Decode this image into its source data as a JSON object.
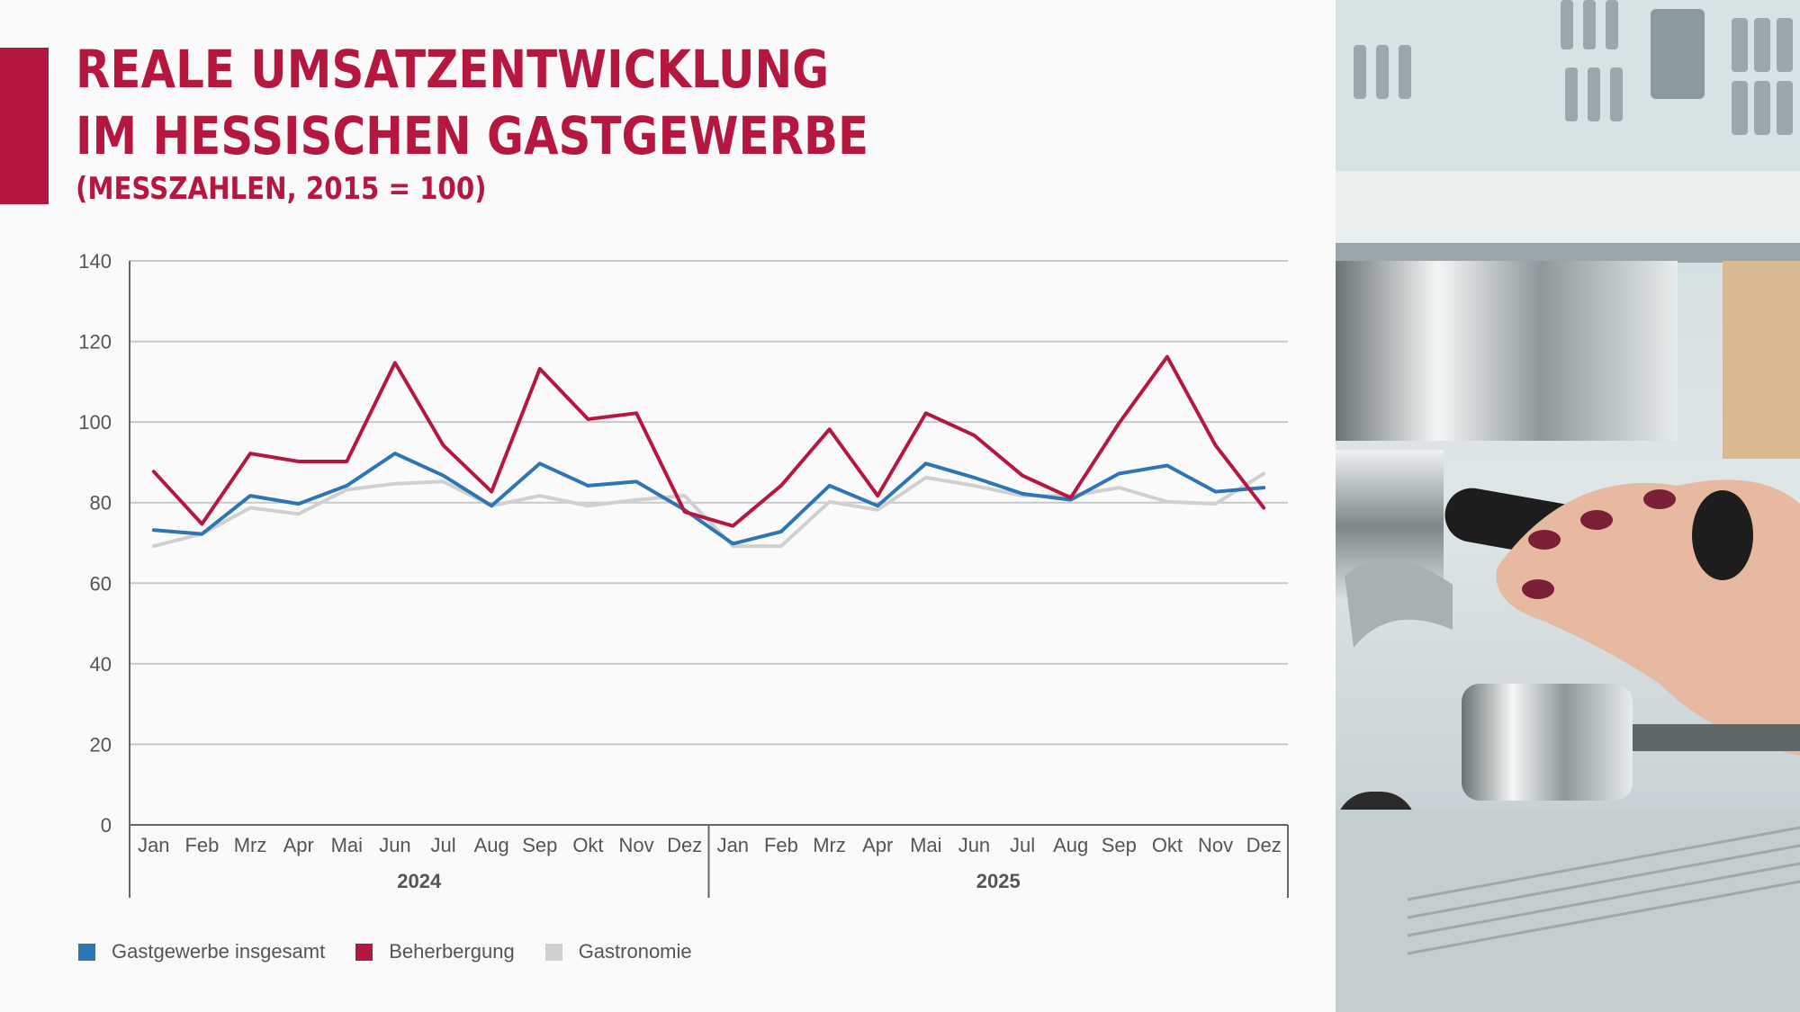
{
  "header": {
    "title_line1": "REALE UMSATZENTWICKLUNG",
    "title_line2": "IM HESSISCHEN GASTGEWERBE",
    "subtitle": "(MESSZAHLEN, 2015 = 100)"
  },
  "colors": {
    "accent": "#b5173f",
    "series_blue": "#2e75b6",
    "series_red": "#b5173f",
    "series_grey": "#d0d0d0"
  },
  "photo": {
    "icon": "espresso-machine-photo"
  },
  "chart_data": {
    "type": "line",
    "y_ticks": [
      "140",
      "120",
      "100",
      "80",
      "60",
      "40",
      "20",
      "0"
    ],
    "ylim": [
      0,
      140
    ],
    "grid": true,
    "categories": [
      "Jan",
      "Feb",
      "Mrz",
      "Apr",
      "Mai",
      "Jun",
      "Jul",
      "Aug",
      "Sep",
      "Okt",
      "Nov",
      "Dez",
      "Jan",
      "Feb",
      "Mrz",
      "Apr",
      "Mai",
      "Jun",
      "Jul",
      "Aug",
      "Sep",
      "Okt",
      "Nov",
      "Dez"
    ],
    "groups": [
      {
        "label": "2024",
        "start": 0,
        "end": 11
      },
      {
        "label": "2025",
        "start": 12,
        "end": 23
      }
    ],
    "legend_position": "bottom-left",
    "series": [
      {
        "name": "Gastgewerbe insgesamt",
        "color": "#2e75b6",
        "values": [
          73.2,
          72.2,
          81.7,
          79.7,
          84.2,
          92.2,
          86.7,
          79.2,
          89.7,
          84.2,
          85.2,
          78.2,
          69.8,
          72.8,
          84.2,
          79.2,
          89.7,
          86.2,
          82.2,
          80.7,
          87.2,
          89.2,
          82.7,
          83.7
        ]
      },
      {
        "name": "Beherbergung",
        "color": "#b5173f",
        "values": [
          87.7,
          74.7,
          92.2,
          90.2,
          90.2,
          114.7,
          94.2,
          82.7,
          113.2,
          100.7,
          102.2,
          77.7,
          74.2,
          84.2,
          98.2,
          81.7,
          102.2,
          96.7,
          86.7,
          81.2,
          99.7,
          116.2,
          94.2,
          78.7
        ]
      },
      {
        "name": "Gastronomie",
        "color": "#d0d0d0",
        "values": [
          69.2,
          72.2,
          78.7,
          77.2,
          83.2,
          84.7,
          85.2,
          79.2,
          81.7,
          79.2,
          80.7,
          81.7,
          69.2,
          69.2,
          80.2,
          78.2,
          86.2,
          84.2,
          81.7,
          81.7,
          83.7,
          80.2,
          79.7,
          87.2
        ]
      }
    ]
  }
}
